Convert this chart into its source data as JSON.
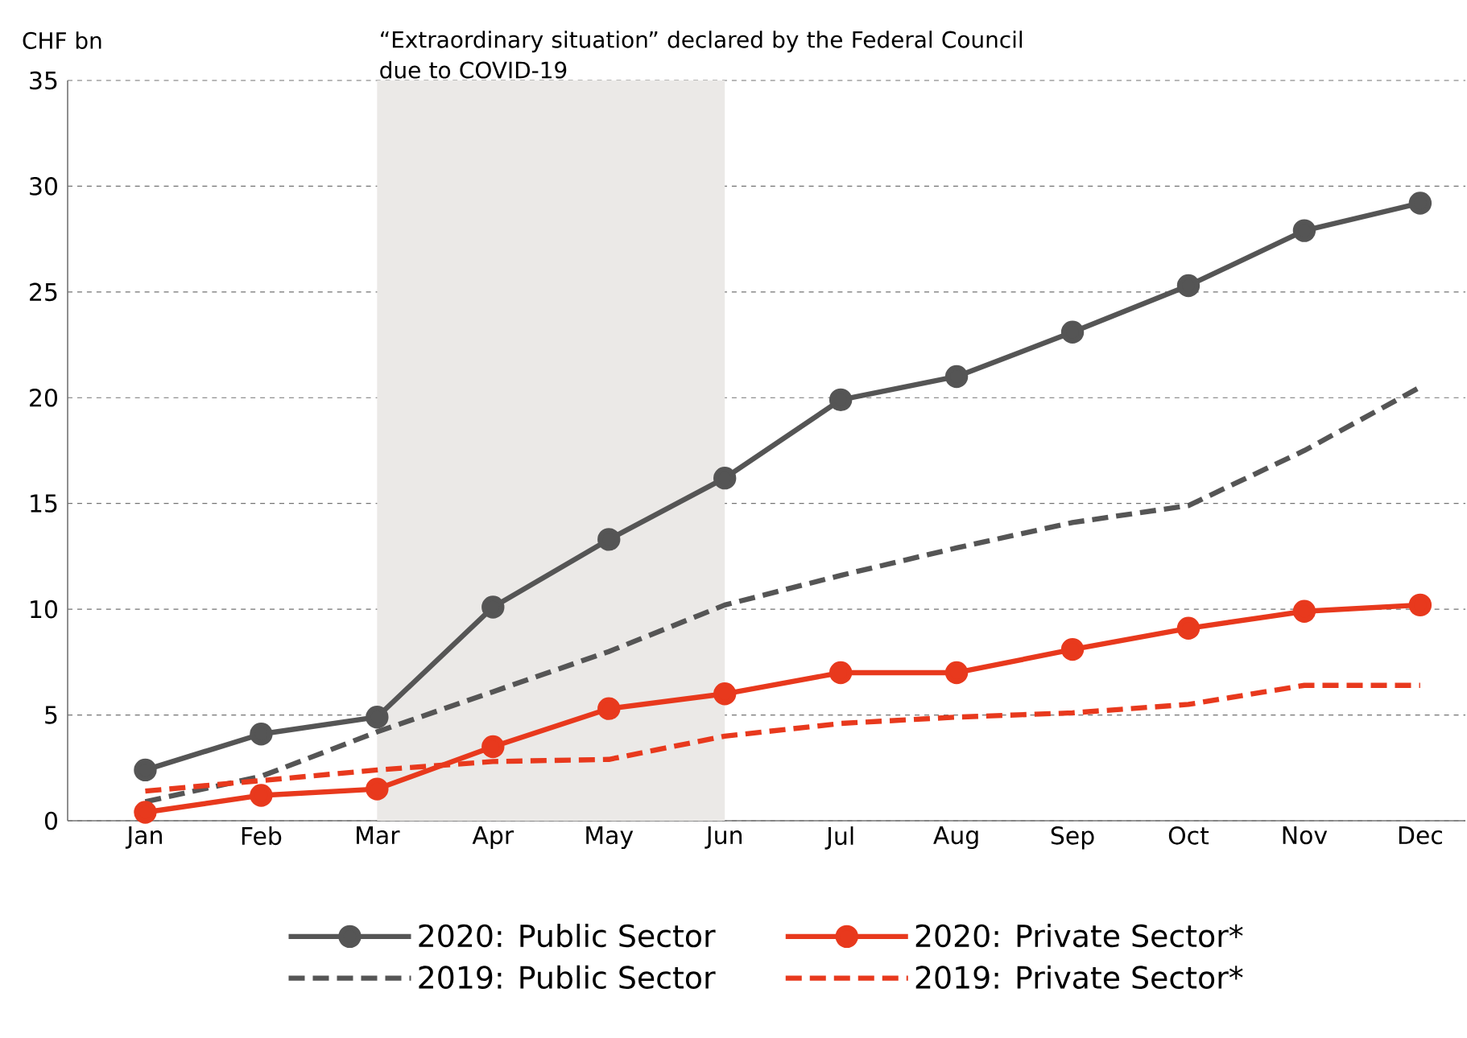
{
  "chart_data": {
    "type": "line",
    "ylabel": "CHF bn",
    "categories": [
      "Jan",
      "Feb",
      "Mar",
      "Apr",
      "May",
      "Jun",
      "Jul",
      "Aug",
      "Sep",
      "Oct",
      "Nov",
      "Dec"
    ],
    "series": [
      {
        "name": "2020: Public Sector",
        "color": "#555555",
        "marker": "circle",
        "line_style": "solid",
        "values": [
          2.4,
          4.1,
          4.9,
          10.1,
          13.3,
          16.2,
          19.9,
          21.0,
          23.1,
          25.3,
          27.9,
          29.2
        ]
      },
      {
        "name": "2020: Private Sector*",
        "color": "#e8391d",
        "marker": "circle",
        "line_style": "solid",
        "values": [
          0.4,
          1.2,
          1.5,
          3.5,
          5.3,
          6.0,
          7.0,
          7.0,
          8.1,
          9.1,
          9.9,
          10.2
        ]
      },
      {
        "name": "2019: Public Sector",
        "color": "#555555",
        "marker": "none",
        "line_style": "dashed",
        "values": [
          0.9,
          2.1,
          4.2,
          6.1,
          8.0,
          10.2,
          11.6,
          12.9,
          14.1,
          14.9,
          17.5,
          20.5
        ]
      },
      {
        "name": "2019: Private Sector*",
        "color": "#e8391d",
        "marker": "none",
        "line_style": "dashed",
        "values": [
          1.4,
          1.9,
          2.4,
          2.8,
          2.9,
          4.0,
          4.6,
          4.9,
          5.1,
          5.5,
          6.4,
          6.4
        ]
      }
    ],
    "bands": [
      {
        "axis": "x",
        "from": "Mar",
        "to": "Jun",
        "label": "“Extraordinary situation” declared by the Federal Council due to COVID-19",
        "color": "#ebe9e7"
      }
    ],
    "ylim": [
      0,
      35
    ],
    "yticks": [
      0,
      5,
      10,
      15,
      20,
      25,
      30,
      35
    ],
    "grid": "y",
    "legend": "bottom"
  }
}
